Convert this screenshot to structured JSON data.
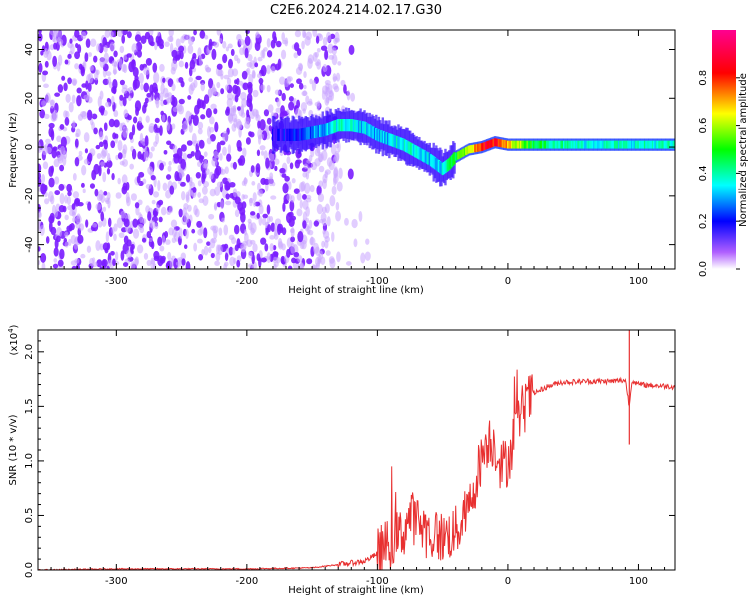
{
  "title": "C2E6.2024.214.02.17.G30",
  "chart_data": [
    {
      "type": "heatmap",
      "xlabel": "Height of straight line (km)",
      "ylabel": "Frequency (Hz)",
      "xlim": [
        -360,
        128
      ],
      "ylim": [
        -50,
        48
      ],
      "xticks": [
        -300,
        -200,
        -100,
        0,
        100
      ],
      "yticks": [
        -40,
        -20,
        0,
        20,
        40
      ],
      "colorbar": {
        "label": "Normalized spectral amplitude",
        "range": [
          0.0,
          1.0
        ],
        "ticks": [
          "0.0",
          "0.2",
          "0.4",
          "0.6",
          "0.8"
        ],
        "colormap": [
          "#ffffff",
          "#9b30ff",
          "#0000ff",
          "#00ffff",
          "#00ff00",
          "#ffff00",
          "#ff0000",
          "#ff00ff"
        ]
      },
      "signal_track": {
        "x": [
          -180,
          -160,
          -140,
          -130,
          -120,
          -110,
          -100,
          -90,
          -80,
          -70,
          -60,
          -50,
          -45,
          -40,
          -30,
          -20,
          -10,
          0,
          20,
          50,
          80,
          100,
          128
        ],
        "freq": [
          5,
          5,
          7,
          9,
          9,
          8,
          5,
          3,
          1,
          -2,
          -5,
          -9,
          -7,
          -4,
          -1,
          0,
          2,
          1,
          1,
          1,
          1,
          1,
          1
        ],
        "amplitude": [
          0.25,
          0.3,
          0.4,
          0.45,
          0.45,
          0.4,
          0.4,
          0.4,
          0.45,
          0.45,
          0.4,
          0.4,
          0.5,
          0.55,
          0.7,
          0.85,
          0.85,
          0.75,
          0.55,
          0.45,
          0.45,
          0.45,
          0.45
        ]
      },
      "noise_region_x": [
        -360,
        -130
      ]
    },
    {
      "type": "line",
      "xlabel": "Height of straight line (km)",
      "ylabel": "SNR (10 * v/v)",
      "y_multiplier": "(x10",
      "y_multiplier_exp": "4",
      "y_multiplier_close": ")",
      "xlim": [
        -360,
        128
      ],
      "ylim": [
        0,
        2.2
      ],
      "xticks": [
        -300,
        -200,
        -100,
        0,
        100
      ],
      "yticks": [
        "0.0",
        "0.5",
        "1.0",
        "1.5",
        "2.0"
      ],
      "line_color": "#e83030",
      "series": [
        {
          "x": [
            -360,
            -300,
            -200,
            -150,
            -130,
            -110,
            -100,
            -90,
            -80,
            -75,
            -70,
            -60,
            -50,
            -40,
            -30,
            -25,
            -20,
            -15,
            -10,
            -5,
            0,
            5,
            10,
            20,
            30,
            40,
            60,
            80,
            90,
            93,
            95,
            100,
            128
          ],
          "y": [
            0.0,
            0.01,
            0.01,
            0.02,
            0.05,
            0.08,
            0.15,
            0.25,
            0.35,
            0.5,
            0.45,
            0.32,
            0.3,
            0.35,
            0.55,
            0.8,
            1.05,
            1.2,
            1.15,
            0.95,
            1.0,
            1.25,
            1.45,
            1.62,
            1.68,
            1.72,
            1.73,
            1.73,
            1.74,
            1.5,
            1.74,
            1.7,
            1.68
          ]
        }
      ]
    }
  ]
}
